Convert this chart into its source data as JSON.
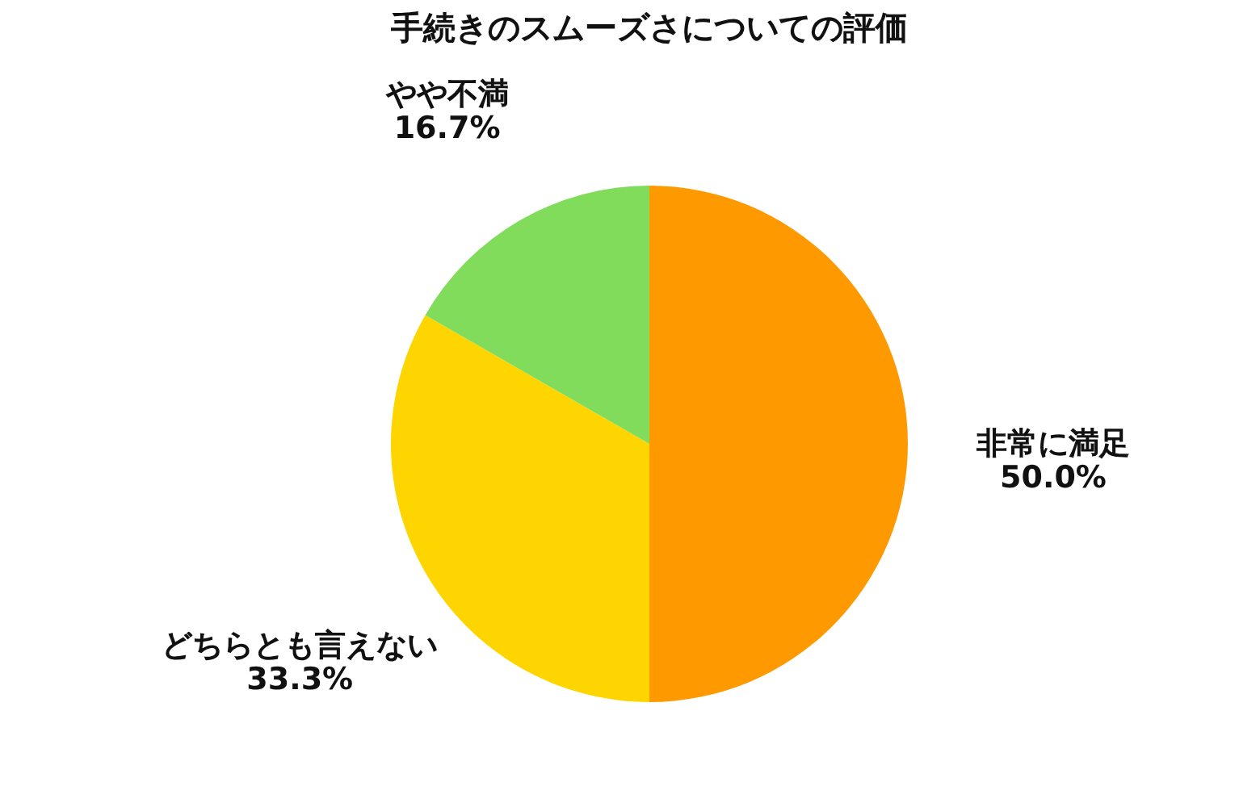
{
  "chart_data": {
    "type": "pie",
    "title": "手続きのスムーズさについての評価",
    "categories": [
      "非常に満足",
      "どちらとも言えない",
      "やや不満"
    ],
    "values": [
      50,
      33.3,
      16.7
    ],
    "colors": [
      "#ff9900",
      "#ffd500",
      "#80dc5a"
    ],
    "value_labels": [
      "50.0%",
      "33.3%",
      "16.7%"
    ],
    "legend": false
  }
}
